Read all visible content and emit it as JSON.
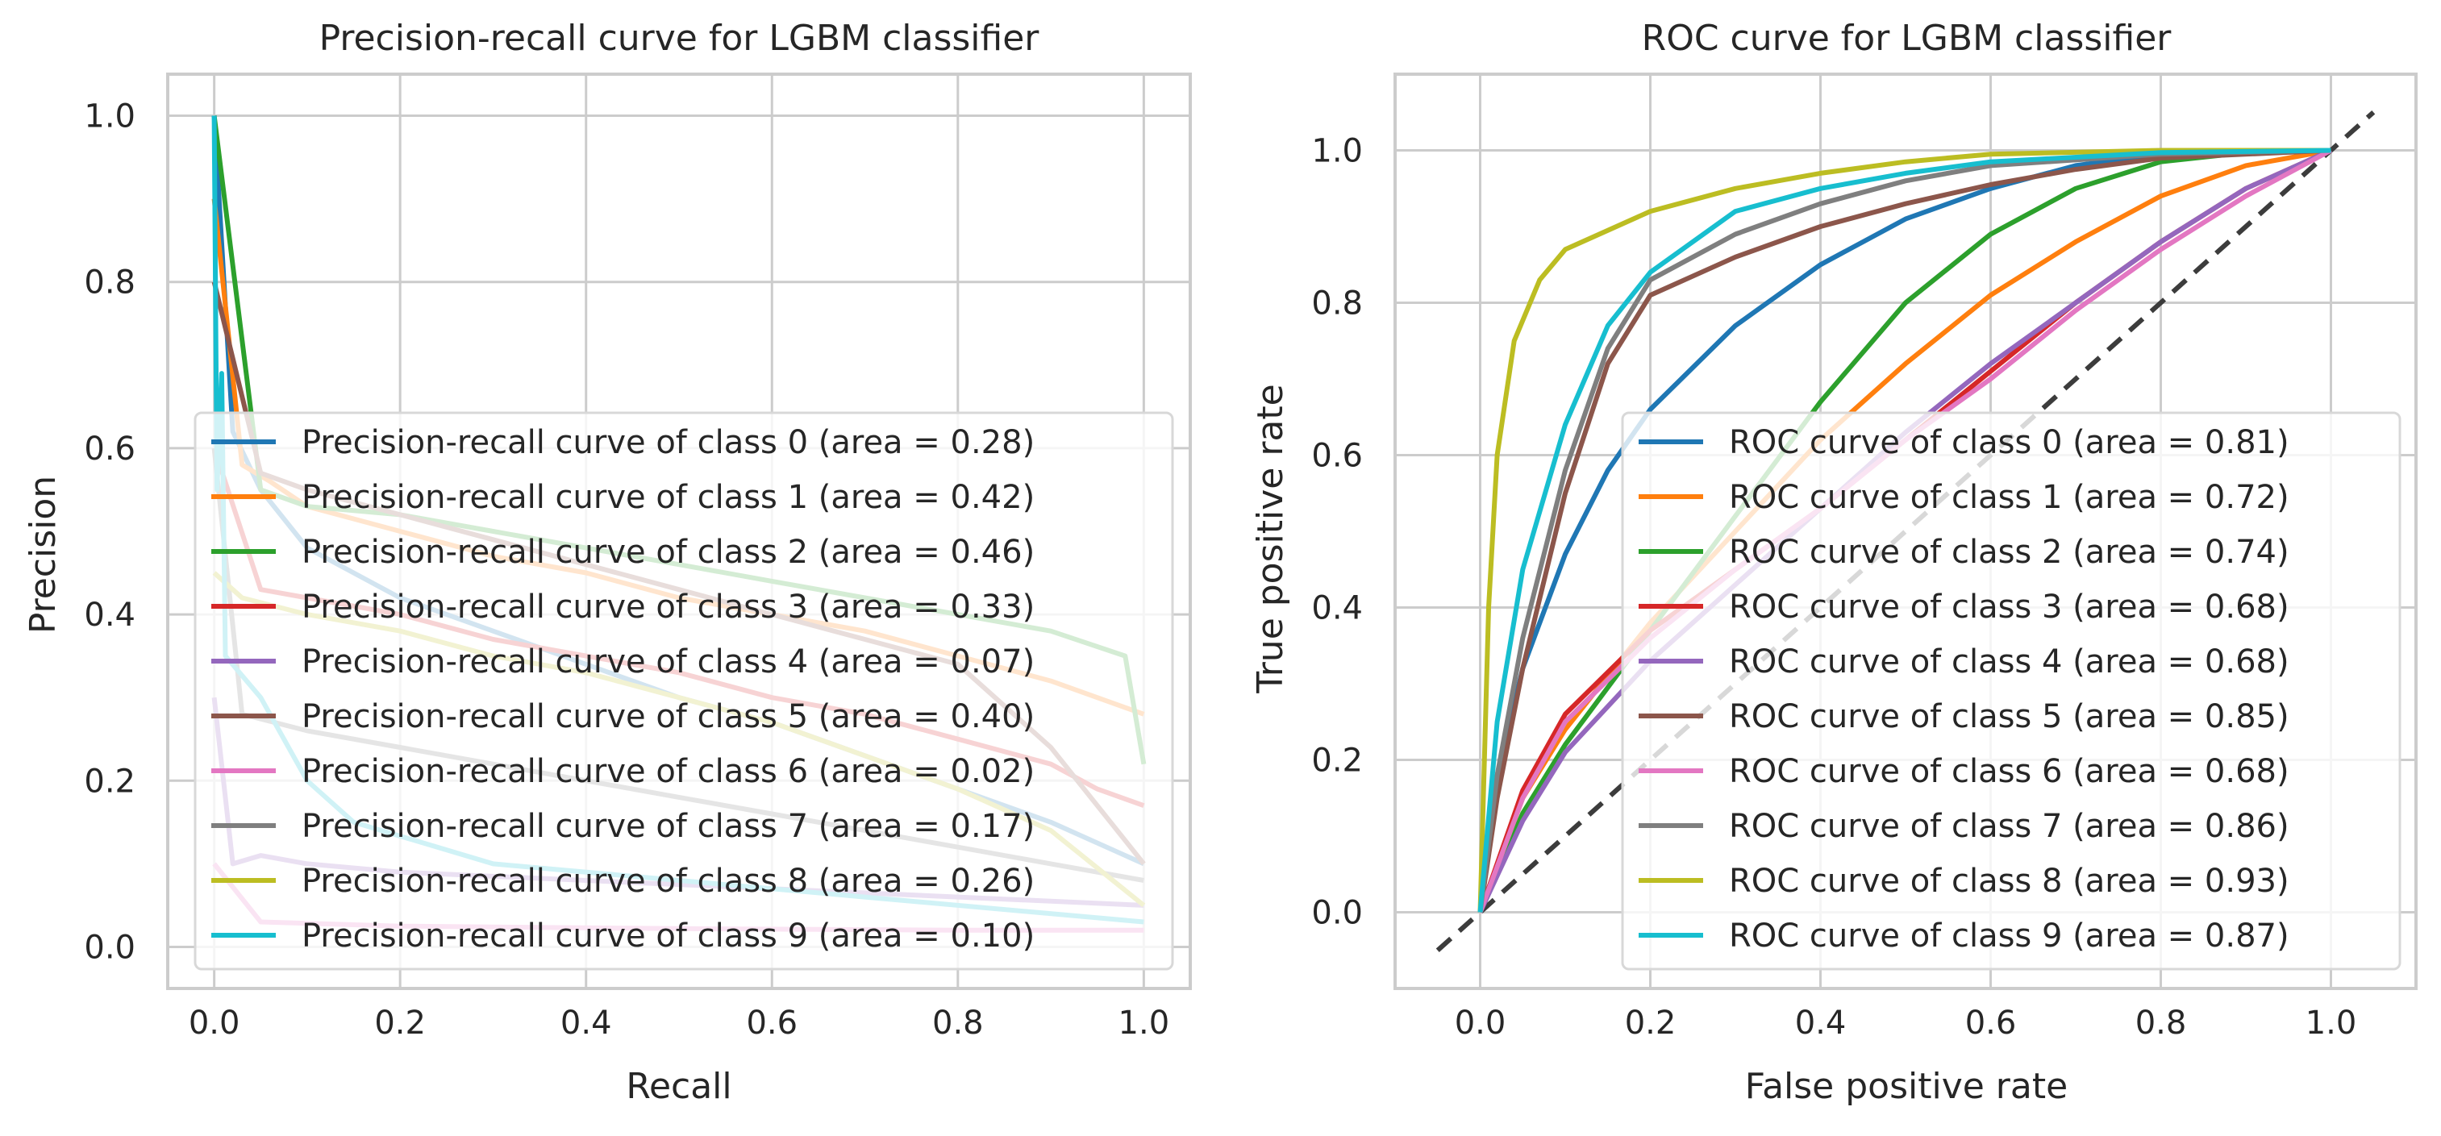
{
  "chart_data": [
    {
      "type": "line",
      "title": "Precision-recall curve for LGBM classifier",
      "xlabel": "Recall",
      "ylabel": "Precision",
      "xlim": [
        -0.05,
        1.05
      ],
      "ylim": [
        -0.05,
        1.05
      ],
      "xticks": [
        "0.0",
        "0.2",
        "0.4",
        "0.6",
        "0.8",
        "1.0"
      ],
      "yticks": [
        "0.0",
        "0.2",
        "0.4",
        "0.6",
        "0.8",
        "1.0"
      ],
      "grid": true,
      "legend_position": "lower-right",
      "series": [
        {
          "name": "Precision-recall curve of class 0 (area = 0.28)",
          "color": "#1f77b4",
          "points": [
            [
              0,
              1.0
            ],
            [
              0.02,
              0.62
            ],
            [
              0.05,
              0.55
            ],
            [
              0.1,
              0.48
            ],
            [
              0.2,
              0.42
            ],
            [
              0.3,
              0.38
            ],
            [
              0.4,
              0.34
            ],
            [
              0.5,
              0.3
            ],
            [
              0.6,
              0.27
            ],
            [
              0.7,
              0.23
            ],
            [
              0.8,
              0.19
            ],
            [
              0.9,
              0.15
            ],
            [
              1.0,
              0.1
            ]
          ]
        },
        {
          "name": "Precision-recall curve of class 1 (area = 0.42)",
          "color": "#ff7f0e",
          "points": [
            [
              0,
              0.9
            ],
            [
              0.03,
              0.58
            ],
            [
              0.06,
              0.56
            ],
            [
              0.1,
              0.53
            ],
            [
              0.2,
              0.5
            ],
            [
              0.3,
              0.47
            ],
            [
              0.4,
              0.45
            ],
            [
              0.5,
              0.42
            ],
            [
              0.6,
              0.4
            ],
            [
              0.7,
              0.38
            ],
            [
              0.8,
              0.35
            ],
            [
              0.9,
              0.32
            ],
            [
              1.0,
              0.28
            ]
          ]
        },
        {
          "name": "Precision-recall curve of class 2 (area = 0.46)",
          "color": "#2ca02c",
          "points": [
            [
              0,
              1.0
            ],
            [
              0.05,
              0.55
            ],
            [
              0.1,
              0.53
            ],
            [
              0.2,
              0.52
            ],
            [
              0.3,
              0.5
            ],
            [
              0.4,
              0.48
            ],
            [
              0.5,
              0.46
            ],
            [
              0.6,
              0.44
            ],
            [
              0.7,
              0.42
            ],
            [
              0.8,
              0.4
            ],
            [
              0.9,
              0.38
            ],
            [
              0.98,
              0.35
            ],
            [
              1.0,
              0.22
            ]
          ]
        },
        {
          "name": "Precision-recall curve of class 3 (area = 0.33)",
          "color": "#d62728",
          "points": [
            [
              0,
              0.6
            ],
            [
              0.05,
              0.43
            ],
            [
              0.1,
              0.42
            ],
            [
              0.2,
              0.4
            ],
            [
              0.3,
              0.37
            ],
            [
              0.4,
              0.35
            ],
            [
              0.5,
              0.33
            ],
            [
              0.6,
              0.3
            ],
            [
              0.7,
              0.28
            ],
            [
              0.8,
              0.25
            ],
            [
              0.9,
              0.22
            ],
            [
              0.95,
              0.19
            ],
            [
              1.0,
              0.17
            ]
          ]
        },
        {
          "name": "Precision-recall curve of class 4 (area = 0.07)",
          "color": "#9467bd",
          "points": [
            [
              0,
              0.3
            ],
            [
              0.02,
              0.1
            ],
            [
              0.05,
              0.11
            ],
            [
              0.1,
              0.1
            ],
            [
              0.2,
              0.09
            ],
            [
              0.4,
              0.08
            ],
            [
              0.6,
              0.07
            ],
            [
              0.8,
              0.06
            ],
            [
              1.0,
              0.05
            ]
          ]
        },
        {
          "name": "Precision-recall curve of class 5 (area = 0.40)",
          "color": "#8c564b",
          "points": [
            [
              0,
              0.8
            ],
            [
              0.05,
              0.57
            ],
            [
              0.1,
              0.55
            ],
            [
              0.2,
              0.52
            ],
            [
              0.3,
              0.49
            ],
            [
              0.4,
              0.46
            ],
            [
              0.5,
              0.43
            ],
            [
              0.6,
              0.4
            ],
            [
              0.7,
              0.37
            ],
            [
              0.8,
              0.34
            ],
            [
              0.9,
              0.24
            ],
            [
              1.0,
              0.1
            ]
          ]
        },
        {
          "name": "Precision-recall curve of class 6 (area = 0.02)",
          "color": "#e377c2",
          "points": [
            [
              0,
              0.1
            ],
            [
              0.05,
              0.03
            ],
            [
              0.2,
              0.025
            ],
            [
              0.5,
              0.022
            ],
            [
              0.8,
              0.02
            ],
            [
              1.0,
              0.02
            ]
          ]
        },
        {
          "name": "Precision-recall curve of class 7 (area = 0.17)",
          "color": "#7f7f7f",
          "points": [
            [
              0,
              0.6
            ],
            [
              0.03,
              0.28
            ],
            [
              0.1,
              0.26
            ],
            [
              0.2,
              0.24
            ],
            [
              0.3,
              0.22
            ],
            [
              0.4,
              0.2
            ],
            [
              0.5,
              0.18
            ],
            [
              0.6,
              0.16
            ],
            [
              0.7,
              0.14
            ],
            [
              0.8,
              0.12
            ],
            [
              0.9,
              0.1
            ],
            [
              1.0,
              0.08
            ]
          ]
        },
        {
          "name": "Precision-recall curve of class 8 (area = 0.26)",
          "color": "#bcbd22",
          "points": [
            [
              0,
              0.45
            ],
            [
              0.03,
              0.42
            ],
            [
              0.1,
              0.4
            ],
            [
              0.2,
              0.38
            ],
            [
              0.3,
              0.35
            ],
            [
              0.4,
              0.33
            ],
            [
              0.5,
              0.3
            ],
            [
              0.6,
              0.27
            ],
            [
              0.7,
              0.23
            ],
            [
              0.8,
              0.19
            ],
            [
              0.9,
              0.14
            ],
            [
              1.0,
              0.05
            ]
          ]
        },
        {
          "name": "Precision-recall curve of class 9 (area = 0.10)",
          "color": "#17becf",
          "points": [
            [
              0,
              1.0
            ],
            [
              0.003,
              0.55
            ],
            [
              0.008,
              0.69
            ],
            [
              0.012,
              0.35
            ],
            [
              0.05,
              0.3
            ],
            [
              0.1,
              0.2
            ],
            [
              0.15,
              0.15
            ],
            [
              0.3,
              0.1
            ],
            [
              0.5,
              0.08
            ],
            [
              0.7,
              0.06
            ],
            [
              1.0,
              0.03
            ]
          ]
        }
      ]
    },
    {
      "type": "line",
      "title": "ROC curve for LGBM classifier",
      "xlabel": "False positive rate",
      "ylabel": "True positive rate",
      "xlim": [
        -0.1,
        1.1
      ],
      "ylim": [
        -0.1,
        1.1
      ],
      "xticks": [
        "0.0",
        "0.2",
        "0.4",
        "0.6",
        "0.8",
        "1.0"
      ],
      "yticks": [
        "0.0",
        "0.2",
        "0.4",
        "0.6",
        "0.8",
        "1.0"
      ],
      "grid": true,
      "legend_position": "lower-right",
      "diagonal_reference": true,
      "series": [
        {
          "name": "ROC curve of class 0 (area = 0.81)",
          "color": "#1f77b4",
          "points": [
            [
              0,
              0
            ],
            [
              0.02,
              0.18
            ],
            [
              0.05,
              0.32
            ],
            [
              0.1,
              0.47
            ],
            [
              0.15,
              0.58
            ],
            [
              0.2,
              0.66
            ],
            [
              0.3,
              0.77
            ],
            [
              0.4,
              0.85
            ],
            [
              0.5,
              0.91
            ],
            [
              0.6,
              0.95
            ],
            [
              0.7,
              0.98
            ],
            [
              0.8,
              0.995
            ],
            [
              1.0,
              1.0
            ]
          ]
        },
        {
          "name": "ROC curve of class 1 (area = 0.72)",
          "color": "#ff7f0e",
          "points": [
            [
              0,
              0
            ],
            [
              0.05,
              0.15
            ],
            [
              0.1,
              0.24
            ],
            [
              0.2,
              0.38
            ],
            [
              0.3,
              0.5
            ],
            [
              0.4,
              0.62
            ],
            [
              0.5,
              0.72
            ],
            [
              0.6,
              0.81
            ],
            [
              0.7,
              0.88
            ],
            [
              0.8,
              0.94
            ],
            [
              0.9,
              0.98
            ],
            [
              1.0,
              1.0
            ]
          ]
        },
        {
          "name": "ROC curve of class 2 (area = 0.74)",
          "color": "#2ca02c",
          "points": [
            [
              0,
              0
            ],
            [
              0.05,
              0.13
            ],
            [
              0.1,
              0.22
            ],
            [
              0.2,
              0.37
            ],
            [
              0.3,
              0.52
            ],
            [
              0.4,
              0.67
            ],
            [
              0.5,
              0.8
            ],
            [
              0.6,
              0.89
            ],
            [
              0.7,
              0.95
            ],
            [
              0.8,
              0.985
            ],
            [
              0.9,
              0.997
            ],
            [
              1.0,
              1.0
            ]
          ]
        },
        {
          "name": "ROC curve of class 3 (area = 0.68)",
          "color": "#d62728",
          "points": [
            [
              0,
              0
            ],
            [
              0.05,
              0.16
            ],
            [
              0.1,
              0.26
            ],
            [
              0.2,
              0.37
            ],
            [
              0.3,
              0.45
            ],
            [
              0.4,
              0.53
            ],
            [
              0.5,
              0.62
            ],
            [
              0.6,
              0.71
            ],
            [
              0.7,
              0.8
            ],
            [
              0.8,
              0.88
            ],
            [
              0.9,
              0.95
            ],
            [
              1.0,
              1.0
            ]
          ]
        },
        {
          "name": "ROC curve of class 4 (area = 0.68)",
          "color": "#9467bd",
          "points": [
            [
              0,
              0
            ],
            [
              0.05,
              0.12
            ],
            [
              0.1,
              0.21
            ],
            [
              0.2,
              0.33
            ],
            [
              0.3,
              0.43
            ],
            [
              0.4,
              0.53
            ],
            [
              0.5,
              0.63
            ],
            [
              0.6,
              0.72
            ],
            [
              0.7,
              0.8
            ],
            [
              0.8,
              0.88
            ],
            [
              0.9,
              0.95
            ],
            [
              1.0,
              1.0
            ]
          ]
        },
        {
          "name": "ROC curve of class 5 (area = 0.85)",
          "color": "#8c564b",
          "points": [
            [
              0,
              0
            ],
            [
              0.02,
              0.15
            ],
            [
              0.05,
              0.32
            ],
            [
              0.1,
              0.55
            ],
            [
              0.15,
              0.72
            ],
            [
              0.2,
              0.81
            ],
            [
              0.3,
              0.86
            ],
            [
              0.4,
              0.9
            ],
            [
              0.5,
              0.93
            ],
            [
              0.6,
              0.955
            ],
            [
              0.7,
              0.975
            ],
            [
              0.8,
              0.99
            ],
            [
              1.0,
              1.0
            ]
          ]
        },
        {
          "name": "ROC curve of class 6 (area = 0.68)",
          "color": "#e377c2",
          "points": [
            [
              0,
              0
            ],
            [
              0.05,
              0.15
            ],
            [
              0.1,
              0.25
            ],
            [
              0.2,
              0.36
            ],
            [
              0.3,
              0.45
            ],
            [
              0.4,
              0.53
            ],
            [
              0.5,
              0.62
            ],
            [
              0.6,
              0.7
            ],
            [
              0.7,
              0.79
            ],
            [
              0.8,
              0.87
            ],
            [
              0.9,
              0.94
            ],
            [
              1.0,
              1.0
            ]
          ]
        },
        {
          "name": "ROC curve of class 7 (area = 0.86)",
          "color": "#7f7f7f",
          "points": [
            [
              0,
              0
            ],
            [
              0.02,
              0.18
            ],
            [
              0.05,
              0.36
            ],
            [
              0.1,
              0.58
            ],
            [
              0.15,
              0.74
            ],
            [
              0.2,
              0.83
            ],
            [
              0.3,
              0.89
            ],
            [
              0.4,
              0.93
            ],
            [
              0.5,
              0.96
            ],
            [
              0.6,
              0.98
            ],
            [
              0.8,
              0.995
            ],
            [
              1.0,
              1.0
            ]
          ]
        },
        {
          "name": "ROC curve of class 8 (area = 0.93)",
          "color": "#bcbd22",
          "points": [
            [
              0,
              0
            ],
            [
              0.01,
              0.4
            ],
            [
              0.02,
              0.6
            ],
            [
              0.04,
              0.75
            ],
            [
              0.07,
              0.83
            ],
            [
              0.1,
              0.87
            ],
            [
              0.2,
              0.92
            ],
            [
              0.3,
              0.95
            ],
            [
              0.4,
              0.97
            ],
            [
              0.5,
              0.985
            ],
            [
              0.6,
              0.995
            ],
            [
              0.8,
              1.0
            ],
            [
              1.0,
              1.0
            ]
          ]
        },
        {
          "name": "ROC curve of class 9 (area = 0.87)",
          "color": "#17becf",
          "points": [
            [
              0,
              0
            ],
            [
              0.02,
              0.25
            ],
            [
              0.05,
              0.45
            ],
            [
              0.1,
              0.64
            ],
            [
              0.15,
              0.77
            ],
            [
              0.2,
              0.84
            ],
            [
              0.3,
              0.92
            ],
            [
              0.4,
              0.95
            ],
            [
              0.5,
              0.97
            ],
            [
              0.6,
              0.985
            ],
            [
              0.8,
              0.997
            ],
            [
              1.0,
              1.0
            ]
          ]
        }
      ]
    }
  ]
}
